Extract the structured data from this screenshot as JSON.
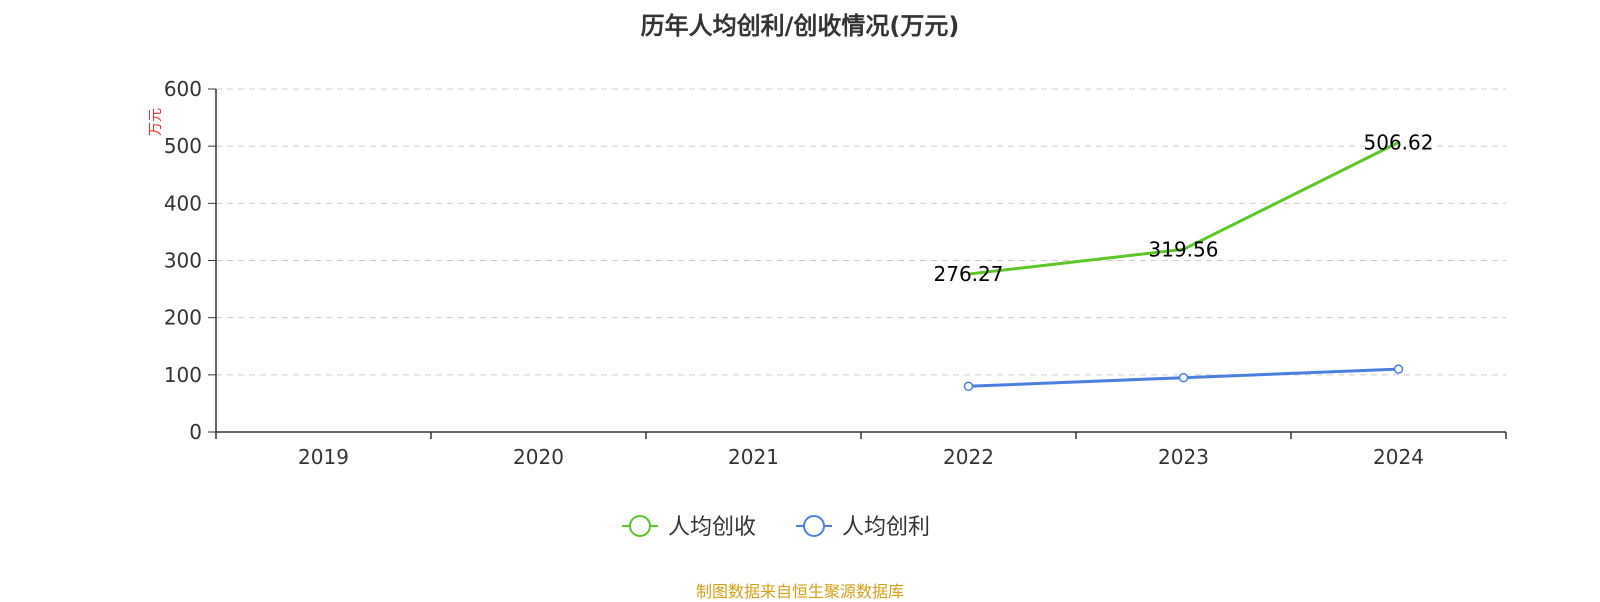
{
  "title": "历年人均创利/创收情况(万元)",
  "source": "制图数据来自恒生聚源数据库",
  "colors": {
    "revenue": "#5ac727",
    "profit": "#4a7fe0",
    "unit": "#e8322d",
    "source": "#d4a017",
    "grid": "#cccccc",
    "axis": "#333333"
  },
  "chart_data": {
    "type": "line",
    "title": "历年人均创利/创收情况(万元)",
    "unit_label": "万元",
    "categories": [
      "2019",
      "2020",
      "2021",
      "2022",
      "2023",
      "2024"
    ],
    "y_ticks": [
      "0",
      "100",
      "200",
      "300",
      "400",
      "500",
      "600"
    ],
    "ylim": [
      0,
      600
    ],
    "grid": true,
    "legend_position": "bottom-center",
    "series": [
      {
        "name": "人均创收",
        "color": "#5ac727",
        "values": [
          null,
          null,
          null,
          276.27,
          319.56,
          506.62
        ],
        "labels": [
          "",
          "",
          "",
          "276.27",
          "319.56",
          "506.62"
        ],
        "show_markers": false
      },
      {
        "name": "人均创利",
        "color": "#4a7fe0",
        "values": [
          null,
          null,
          null,
          80,
          95,
          110
        ],
        "labels": [
          "",
          "",
          "",
          "",
          "",
          ""
        ],
        "show_markers": true
      }
    ]
  }
}
